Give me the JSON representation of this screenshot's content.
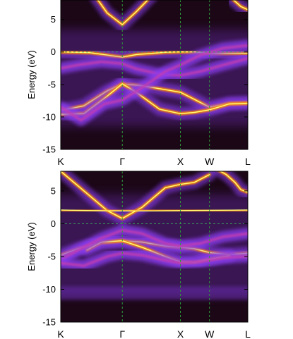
{
  "colors": {
    "background_low": "#1b0716",
    "intensity_mid": "#8b3cf2",
    "intensity_high": "#ff8c00",
    "intensity_peak": "#ffff78",
    "fermi_line": "#3b9a5f",
    "kpoint_line": "#2e9b3a"
  },
  "chart_data": [
    {
      "type": "heatmap",
      "ylabel": "Energy (eV)",
      "xlabel": "",
      "x_tick_labels": [
        "K",
        "Γ",
        "X",
        "W",
        "L"
      ],
      "x_tick_positions": [
        0,
        1.06,
        2.06,
        2.56,
        3.22
      ],
      "x_range": [
        0,
        3.22
      ],
      "y_ticks": [
        5,
        0,
        -5,
        -10,
        -15
      ],
      "ylim": [
        -15,
        8
      ],
      "fermi_level": 0,
      "bands": [
        {
          "name": "",
          "intensity": "high",
          "x": [
            0.6,
            0.8,
            1.06,
            1.3,
            1.55
          ],
          "y": [
            8.5,
            6.0,
            4.2,
            6.2,
            8.5
          ]
        },
        {
          "name": "",
          "intensity": "high",
          "x": [
            2.95,
            3.1,
            3.22
          ],
          "y": [
            8.2,
            7.0,
            6.5
          ]
        },
        {
          "name": "",
          "intensity": "high",
          "x": [
            0,
            0.5,
            0.9,
            1.06,
            1.3,
            1.8,
            2.06,
            2.3,
            2.56,
            2.9,
            3.22
          ],
          "y": [
            0.0,
            -0.1,
            -0.6,
            -0.8,
            -0.4,
            -0.05,
            0.0,
            0.0,
            -0.2,
            -0.2,
            -0.2
          ]
        },
        {
          "name": "",
          "intensity": "high",
          "x": [
            0,
            0.4,
            0.8,
            1.06,
            1.4,
            1.8,
            2.06,
            2.3,
            2.56,
            2.9,
            3.22
          ],
          "y": [
            -9.0,
            -8.3,
            -6.0,
            -4.9,
            -5.2,
            -5.8,
            -6.2,
            -7.3,
            -8.5,
            -7.9,
            -7.8
          ]
        },
        {
          "name": "",
          "intensity": "high",
          "x": [
            0,
            0.4,
            0.8,
            1.06,
            1.3,
            1.7,
            2.06,
            2.3,
            2.56,
            2.9,
            3.22
          ],
          "y": [
            -9.6,
            -9.5,
            -6.8,
            -4.9,
            -6.2,
            -8.8,
            -9.5,
            -9.3,
            -8.9,
            -8.0,
            -7.9
          ]
        },
        {
          "name": "",
          "intensity": "medium",
          "x": [
            0,
            0.3,
            0.7,
            1.06,
            1.3,
            1.7,
            2.06,
            2.4,
            2.8,
            3.22
          ],
          "y": [
            -2.5,
            -2.0,
            -1.5,
            -1.8,
            -2.6,
            -3.4,
            -3.6,
            -3.0,
            -2.0,
            -1.0
          ]
        },
        {
          "name": "",
          "intensity": "medium",
          "x": [
            0,
            0.35,
            0.75,
            1.06,
            1.4,
            1.8,
            2.06,
            2.4,
            2.8,
            3.22
          ],
          "y": [
            -8.5,
            -10.5,
            -8.0,
            -7.4,
            -5.5,
            -3.0,
            -2.0,
            -0.5,
            0.6,
            1.0
          ]
        }
      ]
    },
    {
      "type": "heatmap",
      "ylabel": "Energy (eV)",
      "xlabel": "",
      "x_tick_labels": [
        "K",
        "Γ",
        "X",
        "W",
        "L"
      ],
      "x_tick_positions": [
        0,
        1.06,
        2.06,
        2.56,
        3.22
      ],
      "x_range": [
        0,
        3.22
      ],
      "y_ticks": [
        5,
        0,
        -5,
        -10,
        -15
      ],
      "ylim": [
        -15,
        8
      ],
      "fermi_level": 0,
      "bands": [
        {
          "name": "",
          "intensity": "high",
          "x": [
            0,
            0.4,
            0.8,
            1.06,
            1.4,
            1.8,
            2.06,
            2.3,
            2.56
          ],
          "y": [
            8.0,
            5.0,
            2.0,
            0.8,
            2.5,
            5.5,
            6.0,
            6.3,
            7.5
          ]
        },
        {
          "name": "",
          "intensity": "high",
          "x": [
            2.65,
            2.85,
            3.0,
            3.1,
            3.22
          ],
          "y": [
            8.5,
            7.5,
            6.3,
            5.2,
            4.8
          ]
        },
        {
          "name": "",
          "intensity": "high",
          "x": [
            0,
            0.5,
            1.06,
            1.6,
            2.06,
            2.56,
            3.22
          ],
          "y": [
            2.1,
            2.0,
            1.95,
            1.95,
            2.0,
            2.05,
            2.1
          ]
        },
        {
          "name": "",
          "intensity": "high",
          "x": [
            0,
            0.3,
            0.7,
            1.06,
            1.4,
            1.8,
            2.06,
            2.3,
            2.56,
            2.9,
            3.22
          ],
          "y": [
            -4.8,
            -3.8,
            -2.9,
            -2.6,
            -2.8,
            -3.4,
            -3.6,
            -3.8,
            -4.4,
            -4.7,
            -4.5
          ]
        },
        {
          "name": "",
          "intensity": "high",
          "x": [
            0.45,
            0.7,
            1.06,
            1.4,
            1.8,
            2.06,
            2.3,
            2.56,
            2.9
          ],
          "y": [
            -4.0,
            -2.8,
            -2.6,
            -3.6,
            -5.0,
            -5.8,
            -5.9,
            -5.4,
            -4.9
          ]
        },
        {
          "name": "",
          "intensity": "medium",
          "x": [
            0,
            0.3,
            0.7,
            1.06,
            1.4,
            1.8,
            2.06,
            2.4,
            2.8,
            3.22
          ],
          "y": [
            -5.5,
            -4.0,
            -2.2,
            -1.0,
            -1.5,
            -3.0,
            -3.4,
            -3.0,
            -2.0,
            -1.5
          ]
        },
        {
          "name": "",
          "intensity": "medium",
          "x": [
            0,
            0.4,
            0.8,
            1.06,
            1.4,
            1.8,
            2.06,
            2.4,
            2.8,
            3.22
          ],
          "y": [
            -6.0,
            -6.4,
            -5.0,
            -4.5,
            -4.8,
            -5.6,
            -6.0,
            -5.8,
            -5.2,
            -5.0
          ]
        }
      ]
    }
  ]
}
